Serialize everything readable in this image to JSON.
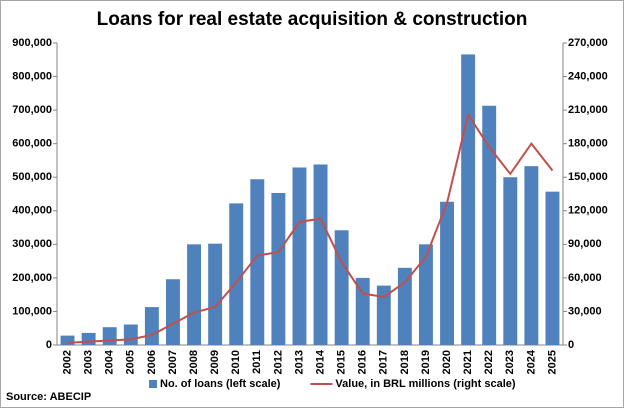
{
  "chart_data": {
    "type": "combo",
    "title": "Loans for real estate acquisition & construction",
    "source": "Source: ABECIP",
    "categories": [
      "2002",
      "2003",
      "2004",
      "2005",
      "2006",
      "2007",
      "2008",
      "2009",
      "2010",
      "2011",
      "2012",
      "2013",
      "2014",
      "2015",
      "2016",
      "2017",
      "2018",
      "2019",
      "2020",
      "2021",
      "2022",
      "2023",
      "2024",
      "2025"
    ],
    "series": [
      {
        "name": "No. of loans (left scale)",
        "type": "bar",
        "color": "#4f81bd",
        "axis": "y",
        "values": [
          28000,
          36000,
          53000,
          61000,
          113000,
          196000,
          300000,
          302000,
          422000,
          494000,
          453000,
          529000,
          538000,
          342000,
          200000,
          177000,
          230000,
          300000,
          427000,
          866000,
          713000,
          500000,
          533000,
          457000
        ]
      },
      {
        "name": "Value, in BRL millions (right scale)",
        "type": "line",
        "color": "#c0504d",
        "axis": "y2",
        "values": [
          2000,
          3000,
          4000,
          5000,
          9000,
          19000,
          29000,
          34000,
          56000,
          80000,
          83000,
          110000,
          113000,
          74000,
          46000,
          43000,
          56000,
          79000,
          127000,
          206000,
          177000,
          153000,
          180000,
          156000
        ]
      }
    ],
    "ylim": [
      0,
      900000
    ],
    "yticks": [
      0,
      {
        "value": 100000,
        "label": "100,000"
      },
      {
        "value": 200000,
        "label": "200,000"
      },
      {
        "value": 300000,
        "label": "300,000"
      },
      {
        "value": 400000,
        "label": "400,000"
      },
      {
        "value": 500000,
        "label": "500,000"
      },
      {
        "value": 600000,
        "label": "600,000"
      },
      {
        "value": 700000,
        "label": "700,000"
      },
      {
        "value": 800000,
        "label": "800,000"
      },
      {
        "value": 900000,
        "label": "900,000"
      }
    ],
    "y2lim": [
      0,
      270000
    ],
    "y2ticks": [
      0,
      {
        "value": 30000,
        "label": "30,000"
      },
      {
        "value": 60000,
        "label": "60,000"
      },
      {
        "value": 90000,
        "label": "90,000"
      },
      {
        "value": 120000,
        "label": "120,000"
      },
      {
        "value": 150000,
        "label": "150,000"
      },
      {
        "value": 180000,
        "label": "180,000"
      },
      {
        "value": 210000,
        "label": "210,000"
      },
      {
        "value": 240000,
        "label": "240,000"
      },
      {
        "value": 270000,
        "label": "270,000"
      }
    ],
    "grid": false,
    "legend": "bottom"
  }
}
